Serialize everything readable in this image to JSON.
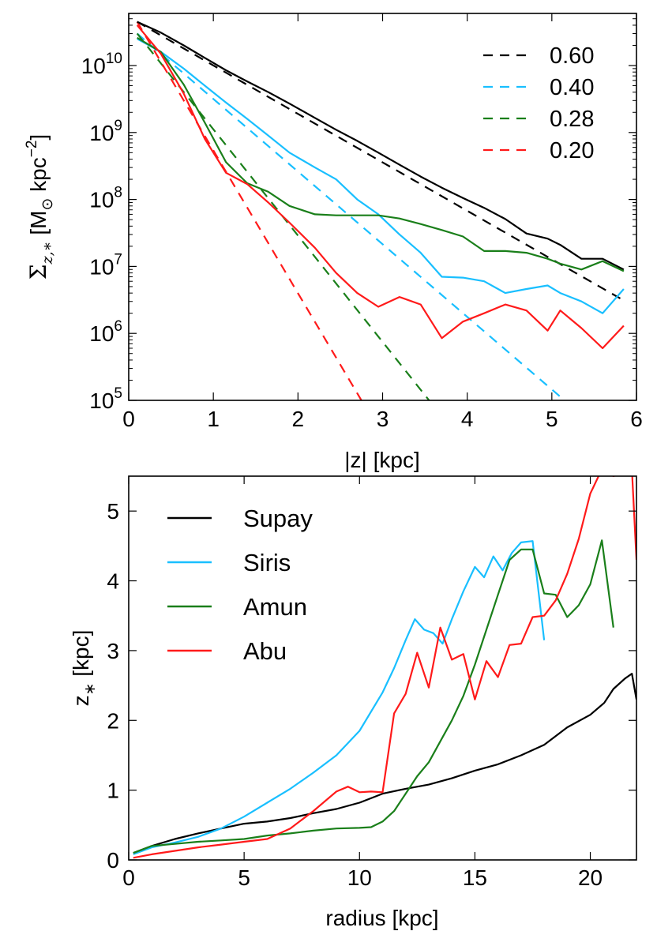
{
  "chart_data": [
    {
      "type": "line",
      "xlabel": "|z| [kpc]",
      "ylabel": "Σ",
      "ylabel_sub": "z,∗",
      "ylabel_unit_open": " [M",
      "ylabel_unit_sun": "⊙",
      "ylabel_unit_kpc": " kpc",
      "ylabel_unit_exp": "−2",
      "ylabel_unit_close": "]",
      "yscale": "log",
      "xlim": [
        0,
        6
      ],
      "ylim": [
        100000,
        60000000000
      ],
      "x_ticks": [
        "0",
        "1",
        "2",
        "3",
        "4",
        "5",
        "6"
      ],
      "y_ticks": [
        {
          "base": "10",
          "exp": "5",
          "value": 100000
        },
        {
          "base": "10",
          "exp": "6",
          "value": 1000000
        },
        {
          "base": "10",
          "exp": "7",
          "value": 10000000
        },
        {
          "base": "10",
          "exp": "8",
          "value": 100000000
        },
        {
          "base": "10",
          "exp": "9",
          "value": 1000000000
        },
        {
          "base": "10",
          "exp": "10",
          "value": 10000000000
        }
      ],
      "legend_position": "top-right",
      "fits": [
        {
          "name": "0.60",
          "color": "#000000",
          "x": [
            0.1,
            5.85
          ],
          "y": [
            45000000000,
            3100000
          ]
        },
        {
          "name": "0.40",
          "color": "#19bfff",
          "x": [
            0.1,
            5.15
          ],
          "y": [
            30000000000,
            100000
          ]
        },
        {
          "name": "0.28",
          "color": "#1a7f1a",
          "x": [
            0.1,
            3.55
          ],
          "y": [
            30000000000,
            100000
          ]
        },
        {
          "name": "0.20",
          "color": "#ff1a1a",
          "x": [
            0.1,
            2.75
          ],
          "y": [
            45000000000,
            100000
          ]
        }
      ],
      "series": [
        {
          "color": "#000000",
          "x": [
            0.1,
            0.38,
            0.65,
            0.9,
            1.15,
            1.4,
            1.65,
            1.9,
            2.2,
            2.45,
            2.7,
            2.95,
            3.2,
            3.45,
            3.7,
            3.95,
            4.2,
            4.45,
            4.7,
            4.95,
            5.1,
            5.35,
            5.6,
            5.85
          ],
          "y": [
            45000000000,
            31000000000,
            20000000000,
            13000000000,
            8500000000,
            5800000000,
            4000000000,
            2700000000,
            1650000000,
            1100000000,
            750000000,
            500000000,
            330000000,
            220000000,
            150000000,
            105000000,
            75000000,
            51000000,
            31000000,
            26000000,
            21000000,
            13000000,
            13000000,
            9000000
          ]
        },
        {
          "color": "#19bfff",
          "x": [
            0.1,
            0.38,
            0.65,
            0.9,
            1.15,
            1.4,
            1.65,
            1.9,
            2.2,
            2.45,
            2.7,
            2.95,
            3.2,
            3.45,
            3.7,
            3.95,
            4.2,
            4.45,
            4.7,
            4.95,
            5.1,
            5.35,
            5.6,
            5.85
          ],
          "y": [
            25000000000,
            16000000000,
            9000000000,
            5000000000,
            2800000000,
            1600000000,
            900000000,
            500000000,
            300000000,
            200000000,
            100000000,
            60000000,
            30000000,
            16000000,
            7000000,
            6800000,
            6000000,
            4000000,
            4600000,
            5200000,
            4000000,
            3000000,
            2000000,
            4600000
          ]
        },
        {
          "color": "#1a7f1a",
          "x": [
            0.1,
            0.38,
            0.65,
            0.9,
            1.15,
            1.4,
            1.65,
            1.9,
            2.2,
            2.45,
            2.7,
            2.95,
            3.2,
            3.45,
            3.7,
            3.95,
            4.2,
            4.45,
            4.7,
            4.95,
            5.1,
            5.35,
            5.6,
            5.85
          ],
          "y": [
            26000000000,
            16000000000,
            5200000000,
            1400000000,
            360000000,
            175000000,
            130000000,
            80000000,
            60000000,
            58000000,
            58000000,
            58000000,
            52000000,
            43000000,
            35000000,
            28000000,
            17000000,
            17000000,
            16000000,
            13000000,
            11000000,
            9000000,
            12000000,
            8500000
          ]
        },
        {
          "color": "#ff1a1a",
          "x": [
            0.1,
            0.38,
            0.65,
            0.9,
            1.15,
            1.4,
            1.65,
            1.9,
            2.2,
            2.45,
            2.7,
            2.95,
            3.2,
            3.45,
            3.7,
            3.95,
            4.2,
            4.45,
            4.7,
            4.95,
            5.1,
            5.35,
            5.6,
            5.85
          ],
          "y": [
            40000000000,
            15000000000,
            3800000000,
            800000000,
            250000000,
            170000000,
            90000000,
            45000000,
            19000000,
            8000000,
            4000000,
            2500000,
            3500000,
            2700000,
            850000,
            1500000,
            2000000,
            2700000,
            2200000,
            1100000,
            2200000,
            1200000,
            600000,
            1300000
          ]
        }
      ]
    },
    {
      "type": "line",
      "xlabel": "radius [kpc]",
      "ylabel": "z",
      "ylabel_sub": "∗",
      "ylabel_unit": " [kpc]",
      "xlim": [
        0,
        22
      ],
      "ylim": [
        0,
        5.5
      ],
      "x_ticks": [
        0,
        5,
        10,
        15,
        20
      ],
      "y_ticks": [
        0,
        1,
        2,
        3,
        4,
        5
      ],
      "legend_position": "top-left",
      "series": [
        {
          "name": "Supay",
          "color": "#000000",
          "x": [
            0.2,
            1,
            2,
            3,
            4,
            5,
            6,
            7,
            8,
            9,
            10,
            11,
            12,
            13,
            14,
            15,
            16,
            17,
            18,
            19,
            20,
            20.6,
            21,
            21.5,
            21.8,
            22
          ],
          "y": [
            0.1,
            0.2,
            0.3,
            0.38,
            0.45,
            0.52,
            0.55,
            0.6,
            0.67,
            0.73,
            0.82,
            0.95,
            1.02,
            1.08,
            1.17,
            1.28,
            1.37,
            1.5,
            1.65,
            1.9,
            2.08,
            2.25,
            2.45,
            2.6,
            2.67,
            2.3
          ]
        },
        {
          "name": "Siris",
          "color": "#19bfff",
          "x": [
            0.2,
            1,
            2,
            3,
            4,
            5,
            6,
            7,
            8,
            9,
            10,
            11,
            11.5,
            12,
            12.4,
            12.8,
            13.2,
            13.6,
            14,
            14.5,
            15,
            15.4,
            15.8,
            16.2,
            16.6,
            17,
            17.5,
            18
          ],
          "y": [
            0.08,
            0.18,
            0.25,
            0.33,
            0.45,
            0.62,
            0.82,
            1.02,
            1.25,
            1.5,
            1.85,
            2.4,
            2.75,
            3.15,
            3.45,
            3.3,
            3.25,
            3.1,
            3.45,
            3.85,
            4.2,
            4.05,
            4.35,
            4.15,
            4.4,
            4.55,
            4.57,
            3.15
          ]
        },
        {
          "name": "Amun",
          "color": "#1a7f1a",
          "x": [
            0.2,
            1,
            2,
            3,
            4,
            5,
            6,
            7,
            8,
            9,
            10,
            10.5,
            11,
            11.5,
            12,
            12.5,
            13,
            13.5,
            14,
            14.5,
            15,
            15.5,
            16,
            16.5,
            17,
            17.5,
            18,
            18.5,
            19,
            19.5,
            20,
            20.5,
            21
          ],
          "y": [
            0.1,
            0.2,
            0.23,
            0.26,
            0.28,
            0.3,
            0.35,
            0.38,
            0.42,
            0.45,
            0.46,
            0.47,
            0.55,
            0.7,
            0.95,
            1.2,
            1.4,
            1.7,
            2.0,
            2.35,
            2.8,
            3.3,
            3.8,
            4.3,
            4.45,
            4.45,
            3.82,
            3.8,
            3.48,
            3.65,
            3.95,
            4.58,
            3.33
          ]
        },
        {
          "name": "Abu",
          "color": "#ff1a1a",
          "x": [
            0.2,
            1,
            2,
            3,
            4,
            5,
            6,
            7,
            8,
            9,
            9.5,
            10,
            10.5,
            11,
            11.5,
            12,
            12.5,
            13,
            13.5,
            14,
            14.5,
            15,
            15.5,
            16,
            16.5,
            17,
            17.5,
            18,
            18.5,
            19,
            19.5,
            20,
            20.5,
            21,
            21.5,
            21.8,
            22
          ],
          "y": [
            0.03,
            0.08,
            0.13,
            0.18,
            0.22,
            0.26,
            0.3,
            0.45,
            0.7,
            0.98,
            1.05,
            0.97,
            0.98,
            0.97,
            2.1,
            2.38,
            2.97,
            2.47,
            3.33,
            2.87,
            2.95,
            2.3,
            2.85,
            2.62,
            3.08,
            3.1,
            3.48,
            3.5,
            3.72,
            4.1,
            4.6,
            5.25,
            5.6,
            5.5,
            5.55,
            5.6,
            4.3
          ]
        }
      ]
    }
  ]
}
